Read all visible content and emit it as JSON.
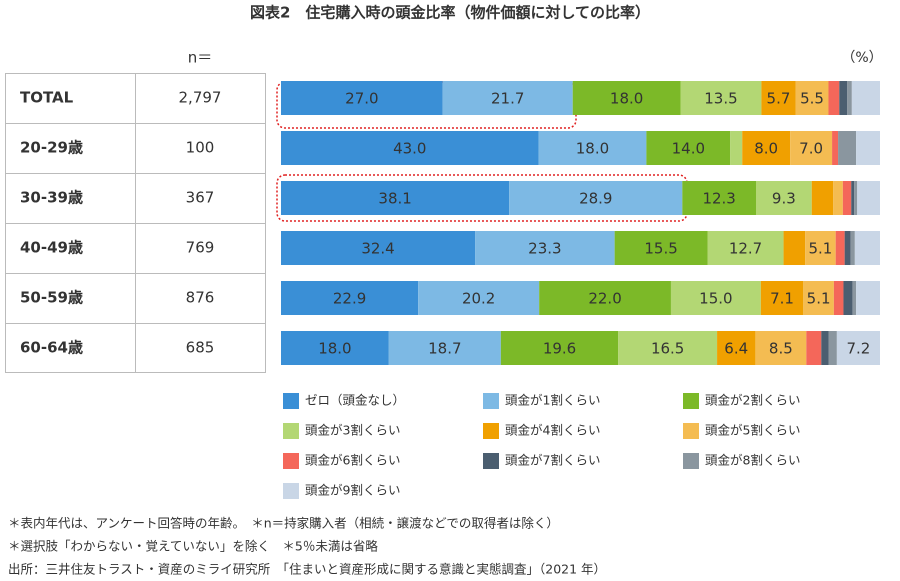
{
  "chart_data": {
    "type": "stacked-barh",
    "title": "図表2　住宅購入時の頭金比率（物件価額に対しての比率）",
    "unit_label": "（%）",
    "table_header": "n＝",
    "categories": [
      "TOTAL",
      "20-29歳",
      "30-39歳",
      "40-49歳",
      "50-59歳",
      "60-64歳"
    ],
    "n": [
      "2,797",
      "100",
      "367",
      "769",
      "876",
      "685"
    ],
    "xlim": [
      0,
      100
    ],
    "series": [
      {
        "name": "ゼロ（頭金なし）",
        "color": "#3a8fd6",
        "values": [
          27.0,
          43.0,
          38.1,
          32.4,
          22.9,
          18.0
        ],
        "value_labels": [
          "27.0",
          "43.0",
          "38.1",
          "32.4",
          "22.9",
          "18.0"
        ]
      },
      {
        "name": "頭金が1割くらい",
        "color": "#7db9e4",
        "values": [
          21.7,
          18.0,
          28.9,
          23.3,
          20.2,
          18.7
        ],
        "value_labels": [
          "21.7",
          "18.0",
          "28.9",
          "23.3",
          "20.2",
          "18.7"
        ]
      },
      {
        "name": "頭金が2割くらい",
        "color": "#7cb928",
        "values": [
          18.0,
          14.0,
          12.3,
          15.5,
          22.0,
          19.6
        ],
        "value_labels": [
          "18.0",
          "14.0",
          "12.3",
          "15.5",
          "22.0",
          "19.6"
        ]
      },
      {
        "name": "頭金が3割くらい",
        "color": "#b3d774",
        "values": [
          13.5,
          2.0,
          9.3,
          12.7,
          15.0,
          16.5
        ],
        "value_labels": [
          "13.5",
          null,
          "9.3",
          "12.7",
          "15.0",
          "16.5"
        ]
      },
      {
        "name": "頭金が4割くらい",
        "color": "#f0a000",
        "values": [
          5.7,
          8.0,
          3.6,
          3.6,
          7.1,
          6.4
        ],
        "value_labels": [
          "5.7",
          "8.0",
          null,
          null,
          "7.1",
          "6.4"
        ]
      },
      {
        "name": "頭金が5割くらい",
        "color": "#f4bc52",
        "values": [
          5.5,
          7.0,
          1.6,
          5.1,
          5.1,
          8.5
        ],
        "value_labels": [
          "5.5",
          "7.0",
          null,
          "5.1",
          "5.1",
          "8.5"
        ]
      },
      {
        "name": "頭金が6割くらい",
        "color": "#f4675a",
        "values": [
          1.8,
          1.0,
          1.4,
          1.5,
          1.6,
          2.5
        ],
        "value_labels": [
          null,
          null,
          null,
          null,
          null,
          null
        ]
      },
      {
        "name": "頭金が7割くらい",
        "color": "#4b5e70",
        "values": [
          1.3,
          0,
          0.5,
          1.0,
          1.5,
          1.2
        ],
        "value_labels": [
          null,
          null,
          null,
          null,
          null,
          null
        ]
      },
      {
        "name": "頭金が8割くらい",
        "color": "#8a969f",
        "values": [
          0.8,
          3.0,
          0.5,
          0.7,
          0.6,
          1.4
        ],
        "value_labels": [
          null,
          null,
          null,
          null,
          null,
          null
        ]
      },
      {
        "name": "頭金が9割くらい",
        "color": "#c9d6e6",
        "values": [
          4.7,
          4.0,
          3.8,
          4.2,
          4.0,
          7.2
        ],
        "value_labels": [
          null,
          null,
          null,
          null,
          null,
          "7.2"
        ]
      }
    ],
    "notes": [
      "＊表内年代は、アンケート回答時の年齢。　＊n＝持家購入者（相続・譲渡などでの取得者は除く）",
      "＊選択肢「わからない・覚えていない」を除く　＊5％未満は省略",
      "出所：三井住友トラスト・資産のミライ研究所　「住まいと資産形成に関する意識と実態調査」（2021 年）"
    ]
  }
}
